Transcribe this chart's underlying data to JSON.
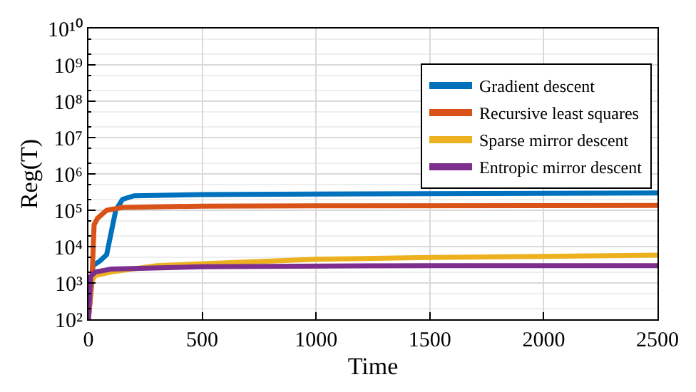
{
  "chart_data": {
    "type": "line",
    "xlabel": "Time",
    "ylabel": "Reg(T)",
    "log": "y",
    "grid": true,
    "legend": "top right",
    "line_style": "solid",
    "marker": "none",
    "xlim": [
      0,
      2500
    ],
    "xticks": [
      0,
      500,
      1000,
      1500,
      2000,
      2500
    ],
    "ylim": [
      100,
      10000000000
    ],
    "yticks": [
      {
        "value": 100,
        "label": "10²"
      },
      {
        "value": 1000,
        "label": "10³"
      },
      {
        "value": 10000,
        "label": "10⁴"
      },
      {
        "value": 100000,
        "label": "10⁵"
      },
      {
        "value": 1000000,
        "label": "10⁶"
      },
      {
        "value": 10000000,
        "label": "10⁷"
      },
      {
        "value": 100000000,
        "label": "10⁸"
      },
      {
        "value": 1000000000,
        "label": "10⁹"
      },
      {
        "value": 10000000000,
        "label": "10¹⁰"
      }
    ],
    "series": [
      {
        "name": "Gradient descent",
        "color": "#0072bd",
        "x": [
          0,
          20,
          50,
          80,
          120,
          150,
          200,
          500,
          1000,
          2500
        ],
        "values": [
          100,
          3000,
          4000,
          6000,
          100000,
          200000,
          250000,
          270000,
          280000,
          300000
        ]
      },
      {
        "name": "Recursive least squares",
        "color": "#d95319",
        "x": [
          0,
          15,
          25,
          40,
          80,
          150,
          500,
          1000,
          2500
        ],
        "values": [
          100,
          1000,
          40000,
          60000,
          100000,
          120000,
          130000,
          132000,
          135000
        ]
      },
      {
        "name": "Sparse mirror descent",
        "color": "#edb120",
        "x": [
          0,
          10,
          30,
          100,
          300,
          1000,
          1500,
          2500
        ],
        "values": [
          100,
          1000,
          1600,
          2000,
          3000,
          4500,
          5000,
          5800
        ]
      },
      {
        "name": "Entropic mirror descent",
        "color": "#7e2f8e",
        "x": [
          0,
          10,
          30,
          100,
          500,
          1500,
          2500
        ],
        "values": [
          100,
          1500,
          2000,
          2400,
          2800,
          3000,
          3000
        ]
      }
    ]
  }
}
